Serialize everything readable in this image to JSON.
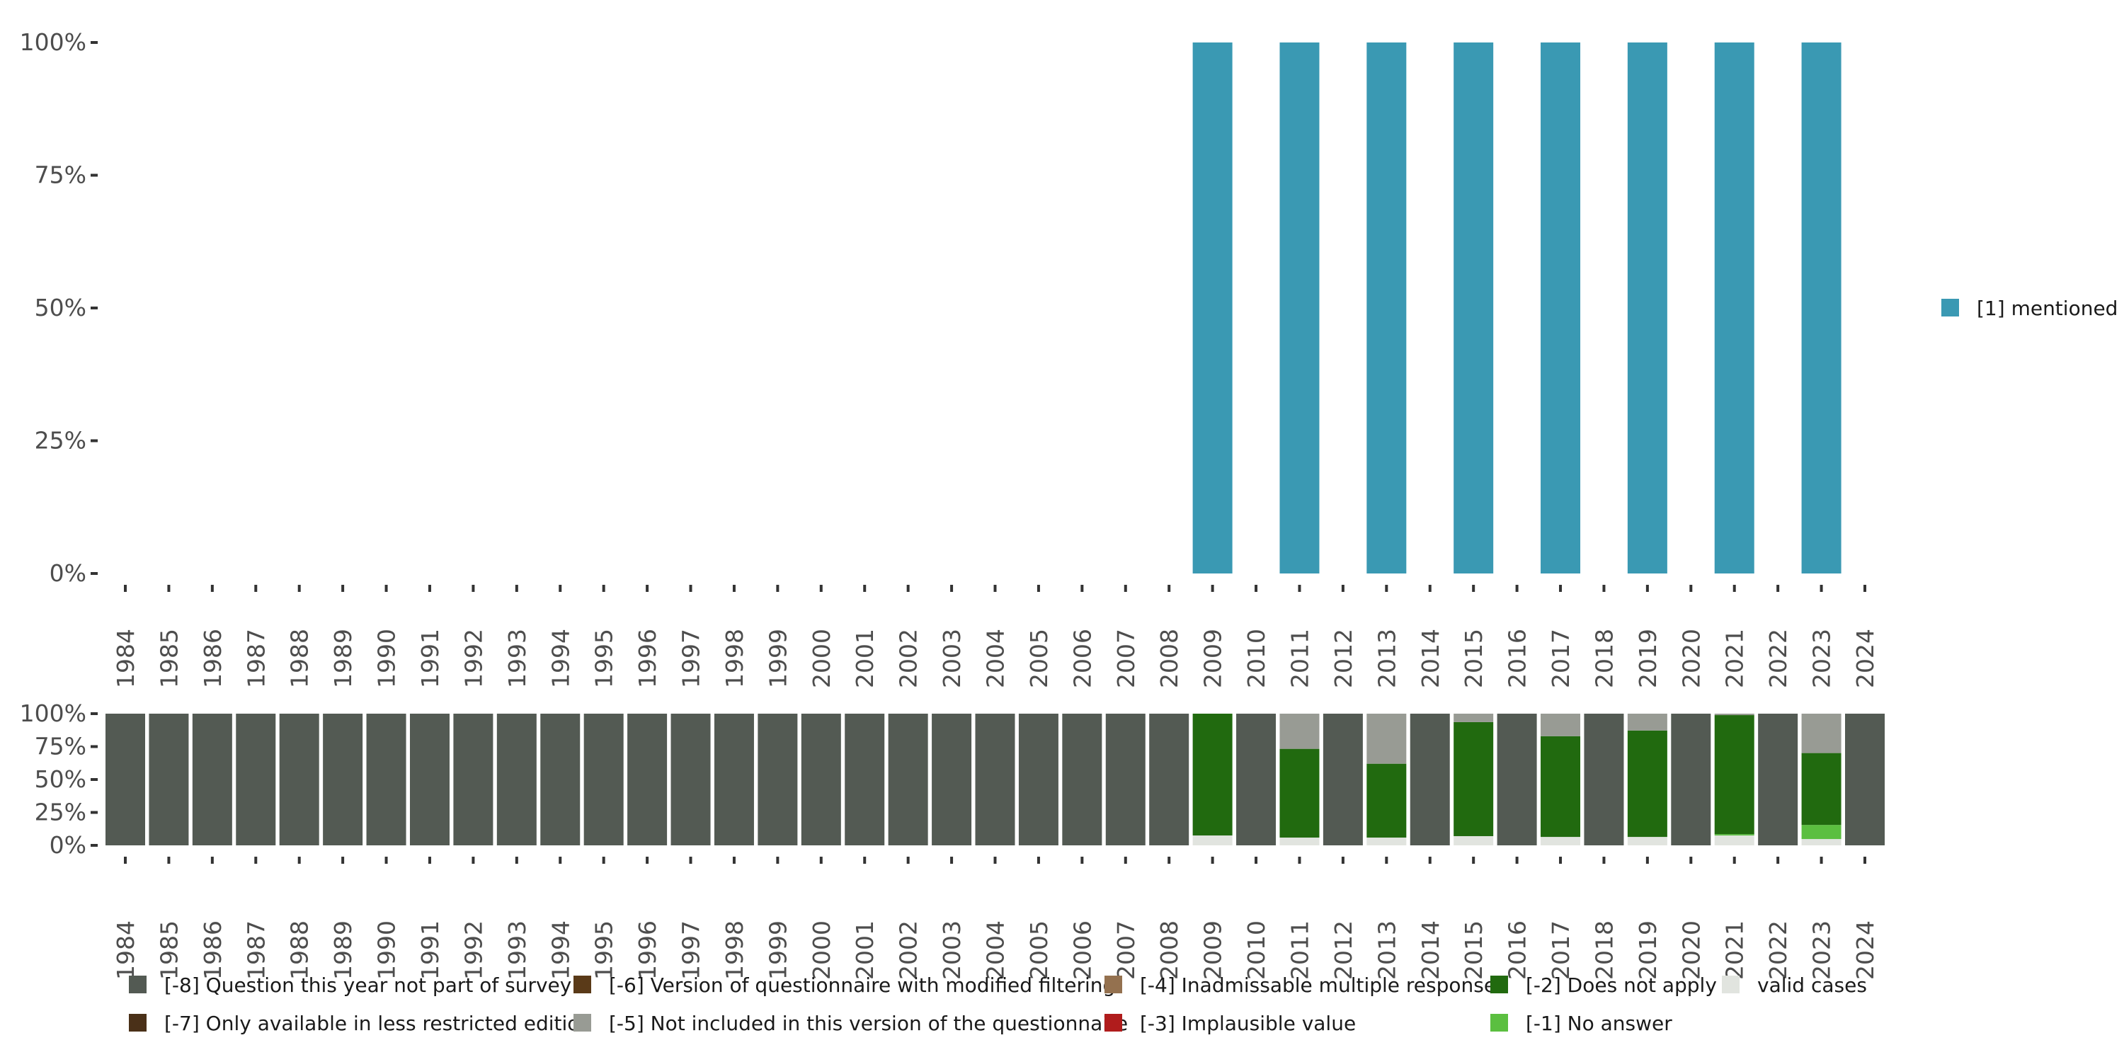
{
  "chart_data": [
    {
      "type": "bar",
      "title": "",
      "xlabel": "",
      "ylabel": "",
      "ylim": [
        0,
        100
      ],
      "yticks": [
        "0%",
        "25%",
        "50%",
        "75%",
        "100%"
      ],
      "categories": [
        "1984",
        "1985",
        "1986",
        "1987",
        "1988",
        "1989",
        "1990",
        "1991",
        "1992",
        "1993",
        "1994",
        "1995",
        "1996",
        "1997",
        "1998",
        "1999",
        "2000",
        "2001",
        "2002",
        "2003",
        "2004",
        "2005",
        "2006",
        "2007",
        "2008",
        "2009",
        "2010",
        "2011",
        "2012",
        "2013",
        "2014",
        "2015",
        "2016",
        "2017",
        "2018",
        "2019",
        "2020",
        "2021",
        "2022",
        "2023",
        "2024"
      ],
      "legend_position": "right",
      "series": [
        {
          "name": "[1] mentioned",
          "color": "#3a99b3",
          "values": {
            "2009": 100,
            "2011": 100,
            "2013": 100,
            "2015": 100,
            "2017": 100,
            "2019": 100,
            "2021": 100,
            "2023": 100
          }
        }
      ]
    },
    {
      "type": "bar",
      "stacked": true,
      "ylim": [
        0,
        100
      ],
      "yticks": [
        "0%",
        "25%",
        "50%",
        "75%",
        "100%"
      ],
      "categories": [
        "1984",
        "1985",
        "1986",
        "1987",
        "1988",
        "1989",
        "1990",
        "1991",
        "1992",
        "1993",
        "1994",
        "1995",
        "1996",
        "1997",
        "1998",
        "1999",
        "2000",
        "2001",
        "2002",
        "2003",
        "2004",
        "2005",
        "2006",
        "2007",
        "2008",
        "2009",
        "2010",
        "2011",
        "2012",
        "2013",
        "2014",
        "2015",
        "2016",
        "2017",
        "2018",
        "2019",
        "2020",
        "2021",
        "2022",
        "2023",
        "2024"
      ],
      "legend_position": "bottom",
      "stack_order": [
        "valid",
        "m1",
        "m2",
        "m3",
        "m4",
        "m5",
        "m6",
        "m7",
        "m8"
      ],
      "series": {
        "m8": {
          "name": "[-8] Question this year not part of survey",
          "color": "#535a53"
        },
        "m7": {
          "name": "[-7] Only available in less restricted edition",
          "color": "#4a3018"
        },
        "m6": {
          "name": "[-6] Version of questionnaire with modified filtering",
          "color": "#5a3a18"
        },
        "m5": {
          "name": "[-5] Not included in this version of the questionnaire",
          "color": "#989b94"
        },
        "m4": {
          "name": "[-4] Inadmissable multiple response",
          "color": "#94714f"
        },
        "m3": {
          "name": "[-3] Implausible value",
          "color": "#b01c1c"
        },
        "m2": {
          "name": "[-2] Does not apply",
          "color": "#216a0f"
        },
        "m1": {
          "name": "[-1] No answer",
          "color": "#5bbf40"
        },
        "valid": {
          "name": "valid cases",
          "color": "#e1e4df"
        }
      },
      "legend_order": [
        "m8",
        "m7",
        "m6",
        "m5",
        "m4",
        "m3",
        "m2",
        "m1",
        "valid"
      ],
      "values": {
        "2009": {
          "valid": 7.5,
          "m2": 92.5
        },
        "2011": {
          "valid": 5.9,
          "m2": 67.4,
          "m5": 26.7
        },
        "2013": {
          "valid": 5.9,
          "m2": 56.1,
          "m5": 38.0
        },
        "2015": {
          "valid": 7.0,
          "m2": 86.6,
          "m5": 6.4
        },
        "2017": {
          "valid": 6.4,
          "m2": 76.5,
          "m5": 17.1
        },
        "2019": {
          "valid": 6.4,
          "m2": 80.8,
          "m5": 12.8
        },
        "2021": {
          "valid": 7.5,
          "m1": 1.0,
          "m2": 90.4,
          "m5": 1.1
        },
        "2023": {
          "valid": 4.8,
          "m1": 10.7,
          "m2": 54.6,
          "m5": 29.9
        },
        "default": {
          "m8": 100
        }
      }
    }
  ]
}
